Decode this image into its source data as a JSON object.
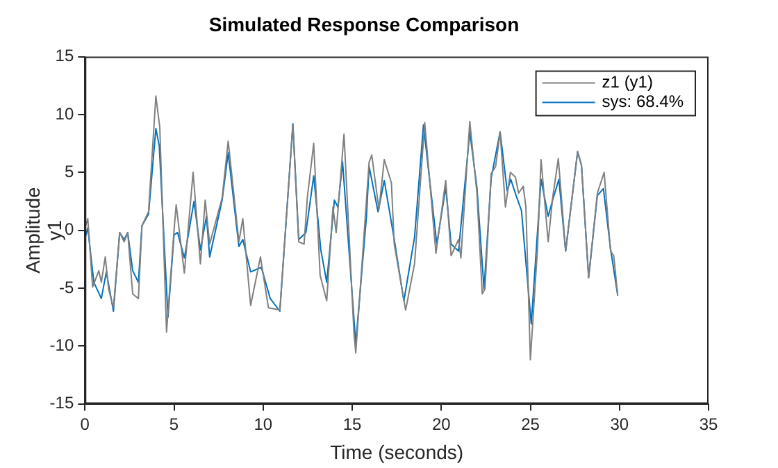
{
  "chart_data": {
    "type": "line",
    "title": "Simulated Response Comparison",
    "xlabel": "Time (seconds)",
    "ylabel": "Amplitude",
    "annotations": [
      "y1"
    ],
    "xlim": [
      0,
      35
    ],
    "xticks": [
      0,
      5,
      10,
      15,
      20,
      25,
      30,
      35
    ],
    "ylim": [
      -15,
      15
    ],
    "yticks": [
      -15,
      -10,
      -5,
      0,
      5,
      10,
      15
    ],
    "grid": false,
    "legend": "top right",
    "marker": "none",
    "line_style": "solid",
    "series": [
      {
        "name": "z1 (y1)",
        "color": "#808080",
        "x": [
          0,
          0.16,
          0.43,
          0.78,
          0.92,
          1.14,
          1.33,
          1.6,
          1.95,
          2.2,
          2.4,
          2.68,
          3.0,
          3.2,
          3.57,
          3.98,
          4.2,
          4.58,
          5.0,
          5.12,
          5.58,
          6.07,
          6.48,
          6.75,
          7.0,
          7.7,
          8.04,
          8.64,
          8.86,
          9.3,
          9.85,
          10.3,
          10.94,
          11.67,
          12.0,
          12.3,
          12.48,
          12.84,
          13.2,
          13.57,
          13.92,
          14.1,
          14.54,
          15.1,
          15.2,
          15.95,
          16.1,
          16.5,
          16.8,
          17.2,
          17.36,
          18.0,
          18.5,
          19.07,
          19.7,
          20.25,
          20.55,
          20.97,
          21.1,
          21.6,
          22.0,
          22.3,
          22.45,
          22.8,
          23.05,
          23.3,
          23.6,
          23.88,
          24.16,
          24.34,
          24.6,
          24.75,
          25.0,
          25.4,
          25.6,
          26.0,
          26.25,
          26.57,
          26.98,
          27.65,
          27.87,
          28.27,
          28.76,
          29.14,
          29.5,
          29.68,
          29.9
        ],
        "values": [
          0.2,
          1.0,
          -4.9,
          -3.5,
          -4.5,
          -2.3,
          -5.1,
          -6.7,
          -0.2,
          -1.0,
          -0.2,
          -5.5,
          -5.9,
          0.4,
          1.6,
          11.6,
          8.9,
          -8.8,
          0.0,
          2.2,
          -3.7,
          5.0,
          -2.9,
          2.6,
          -1.2,
          2.8,
          7.7,
          -1.0,
          1.0,
          -6.5,
          -2.3,
          -6.7,
          -6.9,
          9.1,
          -1.0,
          -1.2,
          2.8,
          7.5,
          -3.9,
          -6.1,
          2.0,
          -0.2,
          8.3,
          -8.9,
          -10.6,
          5.9,
          6.5,
          1.8,
          6.1,
          4.1,
          -1.2,
          -6.9,
          -2.9,
          9.3,
          -2.0,
          4.3,
          -2.2,
          -0.8,
          -2.4,
          9.4,
          3.2,
          -5.5,
          -5.1,
          4.9,
          5.5,
          8.5,
          2.0,
          5.0,
          4.6,
          3.2,
          3.8,
          2.0,
          -11.2,
          -1.6,
          6.1,
          -1.0,
          2.8,
          6.2,
          -1.8,
          6.8,
          5.6,
          -4.1,
          3.2,
          5.0,
          -1.8,
          -2.2,
          -5.6
        ]
      },
      {
        "name": "sys: 68.4%",
        "color": "#0072bd",
        "x": [
          0,
          0.16,
          0.5,
          0.92,
          1.2,
          1.6,
          1.95,
          2.2,
          2.4,
          2.68,
          3.0,
          3.2,
          3.57,
          3.98,
          4.17,
          4.66,
          5.0,
          5.2,
          5.58,
          6.12,
          6.48,
          6.82,
          7.0,
          7.7,
          8.04,
          8.64,
          8.86,
          9.3,
          9.9,
          10.4,
          10.94,
          11.67,
          12.0,
          12.4,
          12.84,
          13.24,
          13.57,
          14.0,
          14.2,
          14.46,
          15.2,
          15.8,
          15.95,
          16.45,
          16.8,
          17.36,
          17.9,
          18.5,
          19.0,
          19.75,
          20.25,
          20.55,
          20.97,
          21.6,
          22.0,
          22.4,
          22.8,
          23.3,
          23.7,
          23.9,
          24.2,
          24.5,
          25.05,
          25.6,
          26.0,
          26.25,
          26.6,
          26.98,
          27.65,
          27.87,
          28.27,
          28.76,
          29.1,
          29.5,
          29.9
        ],
        "values": [
          -0.7,
          0.2,
          -4.5,
          -5.9,
          -3.6,
          -7.0,
          -0.2,
          -0.8,
          -0.2,
          -3.5,
          -4.5,
          0.4,
          1.4,
          8.8,
          7.3,
          -7.5,
          -0.4,
          -0.2,
          -2.4,
          2.5,
          -1.7,
          1.2,
          -2.3,
          2.6,
          6.7,
          -1.4,
          -0.8,
          -3.6,
          -3.2,
          -5.9,
          -7.0,
          9.2,
          -0.8,
          -0.2,
          4.7,
          -1.7,
          -4.5,
          2.6,
          2.0,
          5.9,
          -9.8,
          1.2,
          5.5,
          1.6,
          4.3,
          -0.8,
          -6.1,
          -0.6,
          9.1,
          -1.2,
          3.7,
          -1.2,
          -1.8,
          8.5,
          3.7,
          -5.1,
          4.5,
          8.5,
          3.4,
          4.4,
          3.0,
          1.7,
          -8.1,
          4.4,
          1.2,
          2.6,
          4.4,
          -1.8,
          6.8,
          5.6,
          -4.1,
          3.0,
          3.6,
          -1.6,
          -5.6
        ]
      }
    ]
  }
}
